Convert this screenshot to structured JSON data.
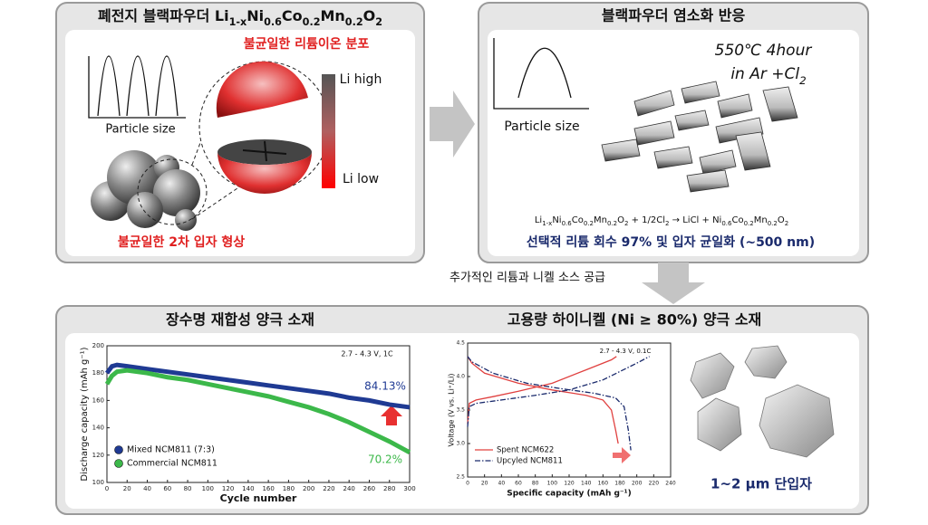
{
  "top_left": {
    "title": [
      "폐전지 블랙파우더 Li",
      "1-x",
      "Ni",
      "0.6",
      "Co",
      "0.2",
      "Mn",
      "0.2",
      "O",
      "2"
    ],
    "distribution_label": "불균일한 리튬이온 분포",
    "axis_label": "Particle size",
    "li_high": "Li high",
    "li_low": "Li low",
    "shape_label": "불균일한 2차 입자 형상"
  },
  "top_right": {
    "title": "블랙파우더 염소화 반응",
    "condition_1": "550℃ 4hour",
    "condition_2": [
      "in Ar +Cl",
      "2"
    ],
    "axis_label": "Particle size",
    "equation": [
      "Li",
      "1-x",
      "Ni",
      "0.6",
      "Co",
      "0.2",
      "Mn",
      "0.2",
      "O",
      "2",
      " + 1/2Cl",
      "2",
      " → LiCl + Ni",
      "0.6",
      "Co",
      "0.2",
      "Mn",
      "0.2",
      "O",
      "2"
    ],
    "result": "선택적 리튬 회수 97% 및 입자 균일화 (~500 nm)"
  },
  "supply_label": "추가적인 리튬과 니켈 소스 공급",
  "bottom": {
    "left_title": "장수명 재합성 양극 소재",
    "right_title": "고용량 하이니켈 (Ni ≥ 80%) 양극 소재",
    "cycle_chart": {
      "type": "line",
      "condition": "2.7 - 4.3 V, 1C",
      "x_label": "Cycle number",
      "y_label": "Discharge capacity (mAh g⁻¹)",
      "xlim": [
        0,
        300
      ],
      "xticks": [
        0,
        20,
        40,
        60,
        80,
        100,
        120,
        140,
        160,
        180,
        200,
        220,
        240,
        260,
        280,
        300
      ],
      "ylim": [
        100,
        200
      ],
      "yticks": [
        100,
        120,
        140,
        160,
        180,
        200
      ],
      "series": [
        {
          "name": "Mixed NCM811 (7:3)",
          "color": "#1f3a93",
          "retention": "84.13%",
          "x": [
            0,
            5,
            10,
            20,
            40,
            60,
            80,
            100,
            120,
            140,
            160,
            180,
            200,
            220,
            240,
            260,
            280,
            300
          ],
          "values": [
            180,
            185,
            186,
            185,
            183,
            181,
            179,
            177,
            175,
            173,
            171,
            169,
            167,
            165,
            162,
            160,
            157,
            155
          ]
        },
        {
          "name": "Commercial NCM811",
          "color": "#3cb84a",
          "retention": "70.2%",
          "x": [
            0,
            5,
            10,
            20,
            40,
            60,
            80,
            100,
            120,
            140,
            160,
            180,
            200,
            220,
            240,
            260,
            280,
            300
          ],
          "values": [
            172,
            178,
            181,
            182,
            180,
            177,
            175,
            172,
            169,
            166,
            163,
            159,
            155,
            150,
            144,
            137,
            130,
            122
          ]
        }
      ]
    },
    "voltage_chart": {
      "type": "line",
      "condition": "2.7 - 4.3 V, 0.1C",
      "x_label": "Specific capacity (mAh g⁻¹)",
      "y_label": "Voltage (V vs. Li⁺/Li)",
      "xlim": [
        0,
        240
      ],
      "xticks": [
        0,
        20,
        40,
        60,
        80,
        100,
        120,
        140,
        160,
        180,
        200,
        220,
        240
      ],
      "ylim": [
        2.5,
        4.5
      ],
      "yticks": [
        2.5,
        {
          "value": 3,
          "label": "3.0"
        },
        3.5,
        {
          "value": 4,
          "label": "4.0"
        },
        4.5
      ],
      "series": [
        {
          "name": "Spent NCM622",
          "color": "#e0403f",
          "x": [
            0,
            2,
            10,
            30,
            60,
            100,
            140,
            170,
            176
          ],
          "values": [
            3.3,
            3.6,
            3.65,
            3.7,
            3.78,
            3.9,
            4.1,
            4.25,
            4.3
          ]
        },
        {
          "color": "#e0403f",
          "x": [
            0,
            5,
            20,
            60,
            100,
            140,
            160,
            170,
            175,
            178
          ],
          "values": [
            4.3,
            4.2,
            4.05,
            3.9,
            3.8,
            3.72,
            3.65,
            3.5,
            3.2,
            3.0
          ]
        },
        {
          "name": "Upcyled NCM811",
          "color": "#1a2a6c",
          "x": [
            0,
            2,
            10,
            40,
            80,
            120,
            160,
            200,
            215
          ],
          "values": [
            3.25,
            3.55,
            3.6,
            3.65,
            3.72,
            3.8,
            3.95,
            4.2,
            4.3
          ]
        },
        {
          "color": "#1a2a6c",
          "x": [
            0,
            5,
            30,
            70,
            110,
            150,
            175,
            185,
            190,
            193
          ],
          "values": [
            4.3,
            4.22,
            4.05,
            3.9,
            3.82,
            3.75,
            3.68,
            3.55,
            3.2,
            2.9
          ]
        }
      ]
    },
    "particle_label": "1~2 μm 단입자"
  }
}
